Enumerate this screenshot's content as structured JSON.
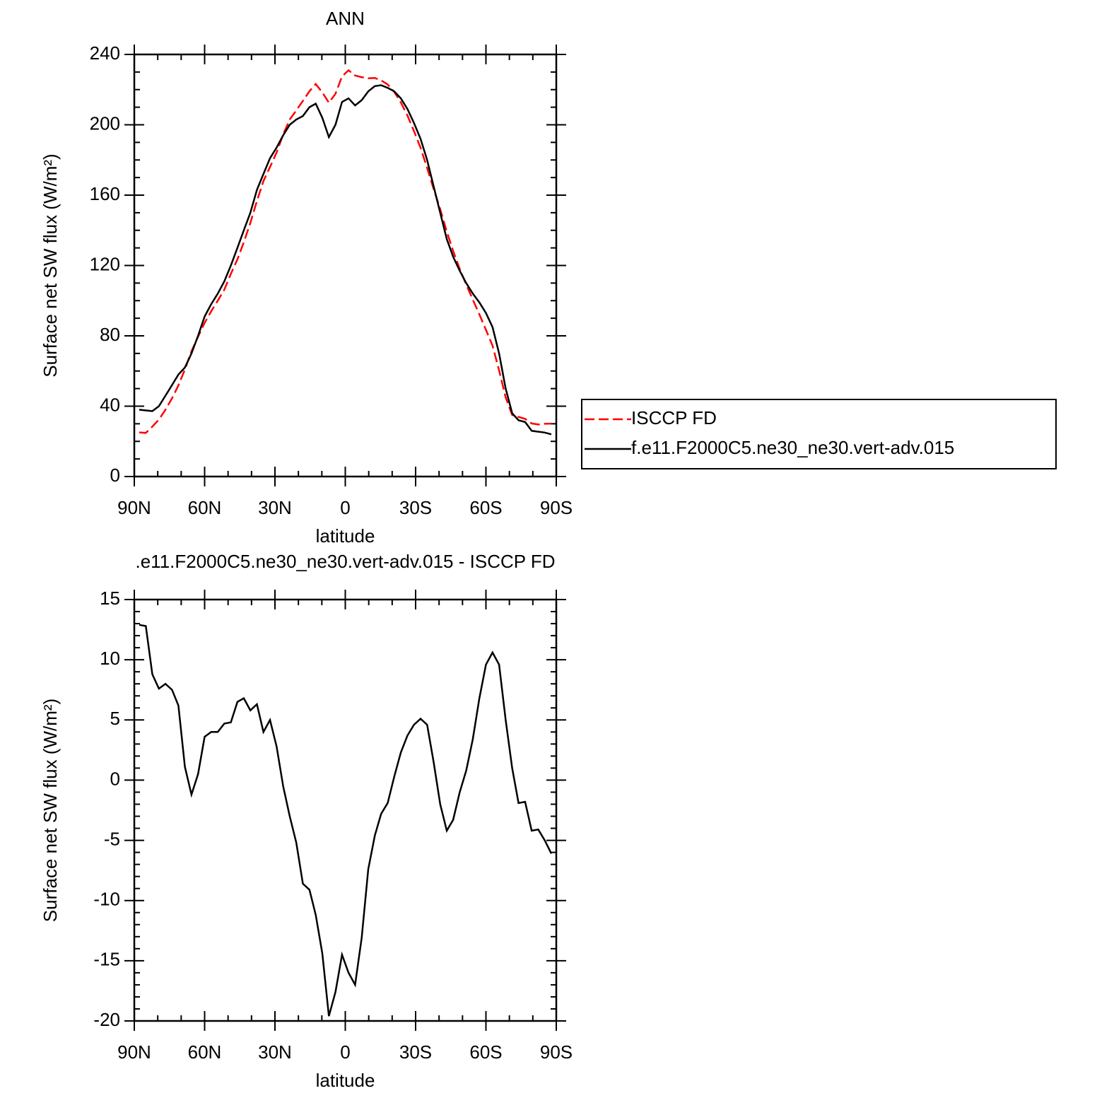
{
  "chart_data": [
    {
      "type": "line",
      "title": "ANN",
      "xlabel": "latitude",
      "ylabel": "Surface net SW flux (W/m²)",
      "x": [
        87.9,
        85.1,
        82.3,
        79.5,
        76.7,
        73.9,
        71.2,
        68.4,
        65.6,
        62.8,
        60.0,
        57.2,
        54.4,
        51.6,
        48.8,
        46.0,
        43.3,
        40.5,
        37.7,
        34.9,
        32.1,
        29.3,
        26.5,
        23.7,
        20.9,
        18.1,
        15.3,
        12.6,
        9.8,
        7.0,
        4.2,
        1.4,
        -1.4,
        -4.2,
        -7.0,
        -9.8,
        -12.6,
        -15.3,
        -18.1,
        -20.9,
        -23.7,
        -26.5,
        -29.3,
        -32.1,
        -34.9,
        -37.7,
        -40.5,
        -43.3,
        -46.0,
        -48.8,
        -51.6,
        -54.4,
        -57.2,
        -60.0,
        -62.8,
        -65.6,
        -68.4,
        -71.2,
        -73.9,
        -76.7,
        -79.5,
        -82.3,
        -85.1,
        -87.9
      ],
      "series": [
        {
          "name": "ISCCP FD",
          "color": "#ff0000",
          "style": "dashed",
          "values": [
            25.1,
            24.8,
            28.4,
            32.4,
            38.0,
            44.5,
            51.8,
            60.9,
            71.2,
            79.5,
            87.4,
            94.0,
            100.0,
            106.3,
            115.2,
            123.5,
            133.2,
            144.2,
            156.7,
            168.0,
            176.0,
            184.2,
            194.5,
            203.0,
            208.2,
            213.6,
            219.1,
            223.2,
            218.4,
            212.6,
            217.6,
            227.5,
            231.0,
            228.0,
            227.1,
            226.4,
            226.6,
            225.3,
            222.9,
            218.7,
            212.7,
            205.3,
            196.4,
            186.9,
            175.4,
            163.5,
            152.0,
            139.2,
            128.3,
            118.0,
            109.2,
            100.6,
            92.2,
            83.4,
            74.4,
            60.4,
            45.0,
            35.0,
            33.9,
            32.8,
            30.2,
            29.6,
            30.0,
            30.1
          ]
        },
        {
          "name": "f.e11.F2000C5.ne30_ne30.vert-adv.015",
          "color": "#000000",
          "style": "solid",
          "values": [
            38.0,
            37.6,
            37.2,
            40.0,
            46.0,
            52.0,
            58.0,
            62.0,
            70.0,
            80.0,
            91.0,
            98.0,
            104.0,
            111.0,
            120.0,
            130.0,
            140.0,
            150.0,
            163.0,
            172.0,
            181.0,
            187.0,
            194.0,
            200.0,
            203.0,
            205.0,
            210.0,
            212.0,
            204.0,
            193.0,
            200.0,
            213.0,
            215.0,
            211.0,
            214.0,
            219.0,
            222.0,
            222.5,
            221.0,
            219.0,
            215.0,
            209.0,
            201.0,
            192.0,
            180.0,
            165.0,
            150.0,
            135.0,
            125.0,
            117.0,
            110.0,
            104.0,
            99.0,
            93.0,
            85.0,
            70.0,
            50.0,
            36.0,
            32.0,
            31.0,
            26.0,
            25.5,
            25.0,
            24.0
          ]
        }
      ],
      "xlim": [
        90,
        -90
      ],
      "xticks": [
        {
          "value": 90,
          "label": "90N"
        },
        {
          "value": 60,
          "label": "60N"
        },
        {
          "value": 30,
          "label": "30N"
        },
        0,
        {
          "value": -30,
          "label": "30S"
        },
        {
          "value": -60,
          "label": "60S"
        },
        {
          "value": -90,
          "label": "90S"
        }
      ],
      "xminor": 3,
      "ylim": [
        0,
        240
      ],
      "yticks": [
        0,
        40,
        80,
        120,
        160,
        200,
        240
      ],
      "yminor": 4,
      "legend": "right"
    },
    {
      "type": "line",
      "title": ".e11.F2000C5.ne30_ne30.vert-adv.015 - ISCCP FD",
      "xlabel": "latitude",
      "ylabel": "Surface net SW flux (W/m²)",
      "x": [
        87.9,
        85.1,
        82.3,
        79.5,
        76.7,
        73.9,
        71.2,
        68.4,
        65.6,
        62.8,
        60.0,
        57.2,
        54.4,
        51.6,
        48.8,
        46.0,
        43.3,
        40.5,
        37.7,
        34.9,
        32.1,
        29.3,
        26.5,
        23.7,
        20.9,
        18.1,
        15.3,
        12.6,
        9.8,
        7.0,
        4.2,
        1.4,
        -1.4,
        -4.2,
        -7.0,
        -9.8,
        -12.6,
        -15.3,
        -18.1,
        -20.9,
        -23.7,
        -26.5,
        -29.3,
        -32.1,
        -34.9,
        -37.7,
        -40.5,
        -43.3,
        -46.0,
        -48.8,
        -51.6,
        -54.4,
        -57.2,
        -60.0,
        -62.8,
        -65.6,
        -68.4,
        -71.2,
        -73.9,
        -76.7,
        -79.5,
        -82.3,
        -85.1,
        -87.9
      ],
      "series": [
        {
          "color": "#000000",
          "style": "solid",
          "values": [
            12.9,
            12.8,
            8.8,
            7.6,
            8.0,
            7.5,
            6.2,
            1.1,
            -1.2,
            0.5,
            3.6,
            4.0,
            4.0,
            4.7,
            4.8,
            6.5,
            6.8,
            5.8,
            6.3,
            4.0,
            5.0,
            2.8,
            -0.5,
            -3.0,
            -5.2,
            -8.6,
            -9.1,
            -11.2,
            -14.4,
            -19.6,
            -17.6,
            -14.5,
            -16.0,
            -17.0,
            -13.1,
            -7.4,
            -4.6,
            -2.8,
            -1.9,
            0.3,
            2.3,
            3.7,
            4.6,
            5.1,
            4.6,
            1.5,
            -2.0,
            -4.2,
            -3.3,
            -1.0,
            0.8,
            3.4,
            6.8,
            9.6,
            10.6,
            9.6,
            5.0,
            1.0,
            -1.9,
            -1.8,
            -4.2,
            -4.1,
            -5.0,
            -6.1
          ]
        }
      ],
      "xlim": [
        90,
        -90
      ],
      "xticks": [
        {
          "value": 90,
          "label": "90N"
        },
        {
          "value": 60,
          "label": "60N"
        },
        {
          "value": 30,
          "label": "30N"
        },
        0,
        {
          "value": -30,
          "label": "30S"
        },
        {
          "value": -60,
          "label": "60S"
        },
        {
          "value": -90,
          "label": "90S"
        }
      ],
      "xminor": 3,
      "ylim": [
        -20,
        15
      ],
      "yticks": [
        -20,
        -15,
        -10,
        -5,
        0,
        5,
        10,
        15
      ],
      "yminor": 5
    }
  ]
}
